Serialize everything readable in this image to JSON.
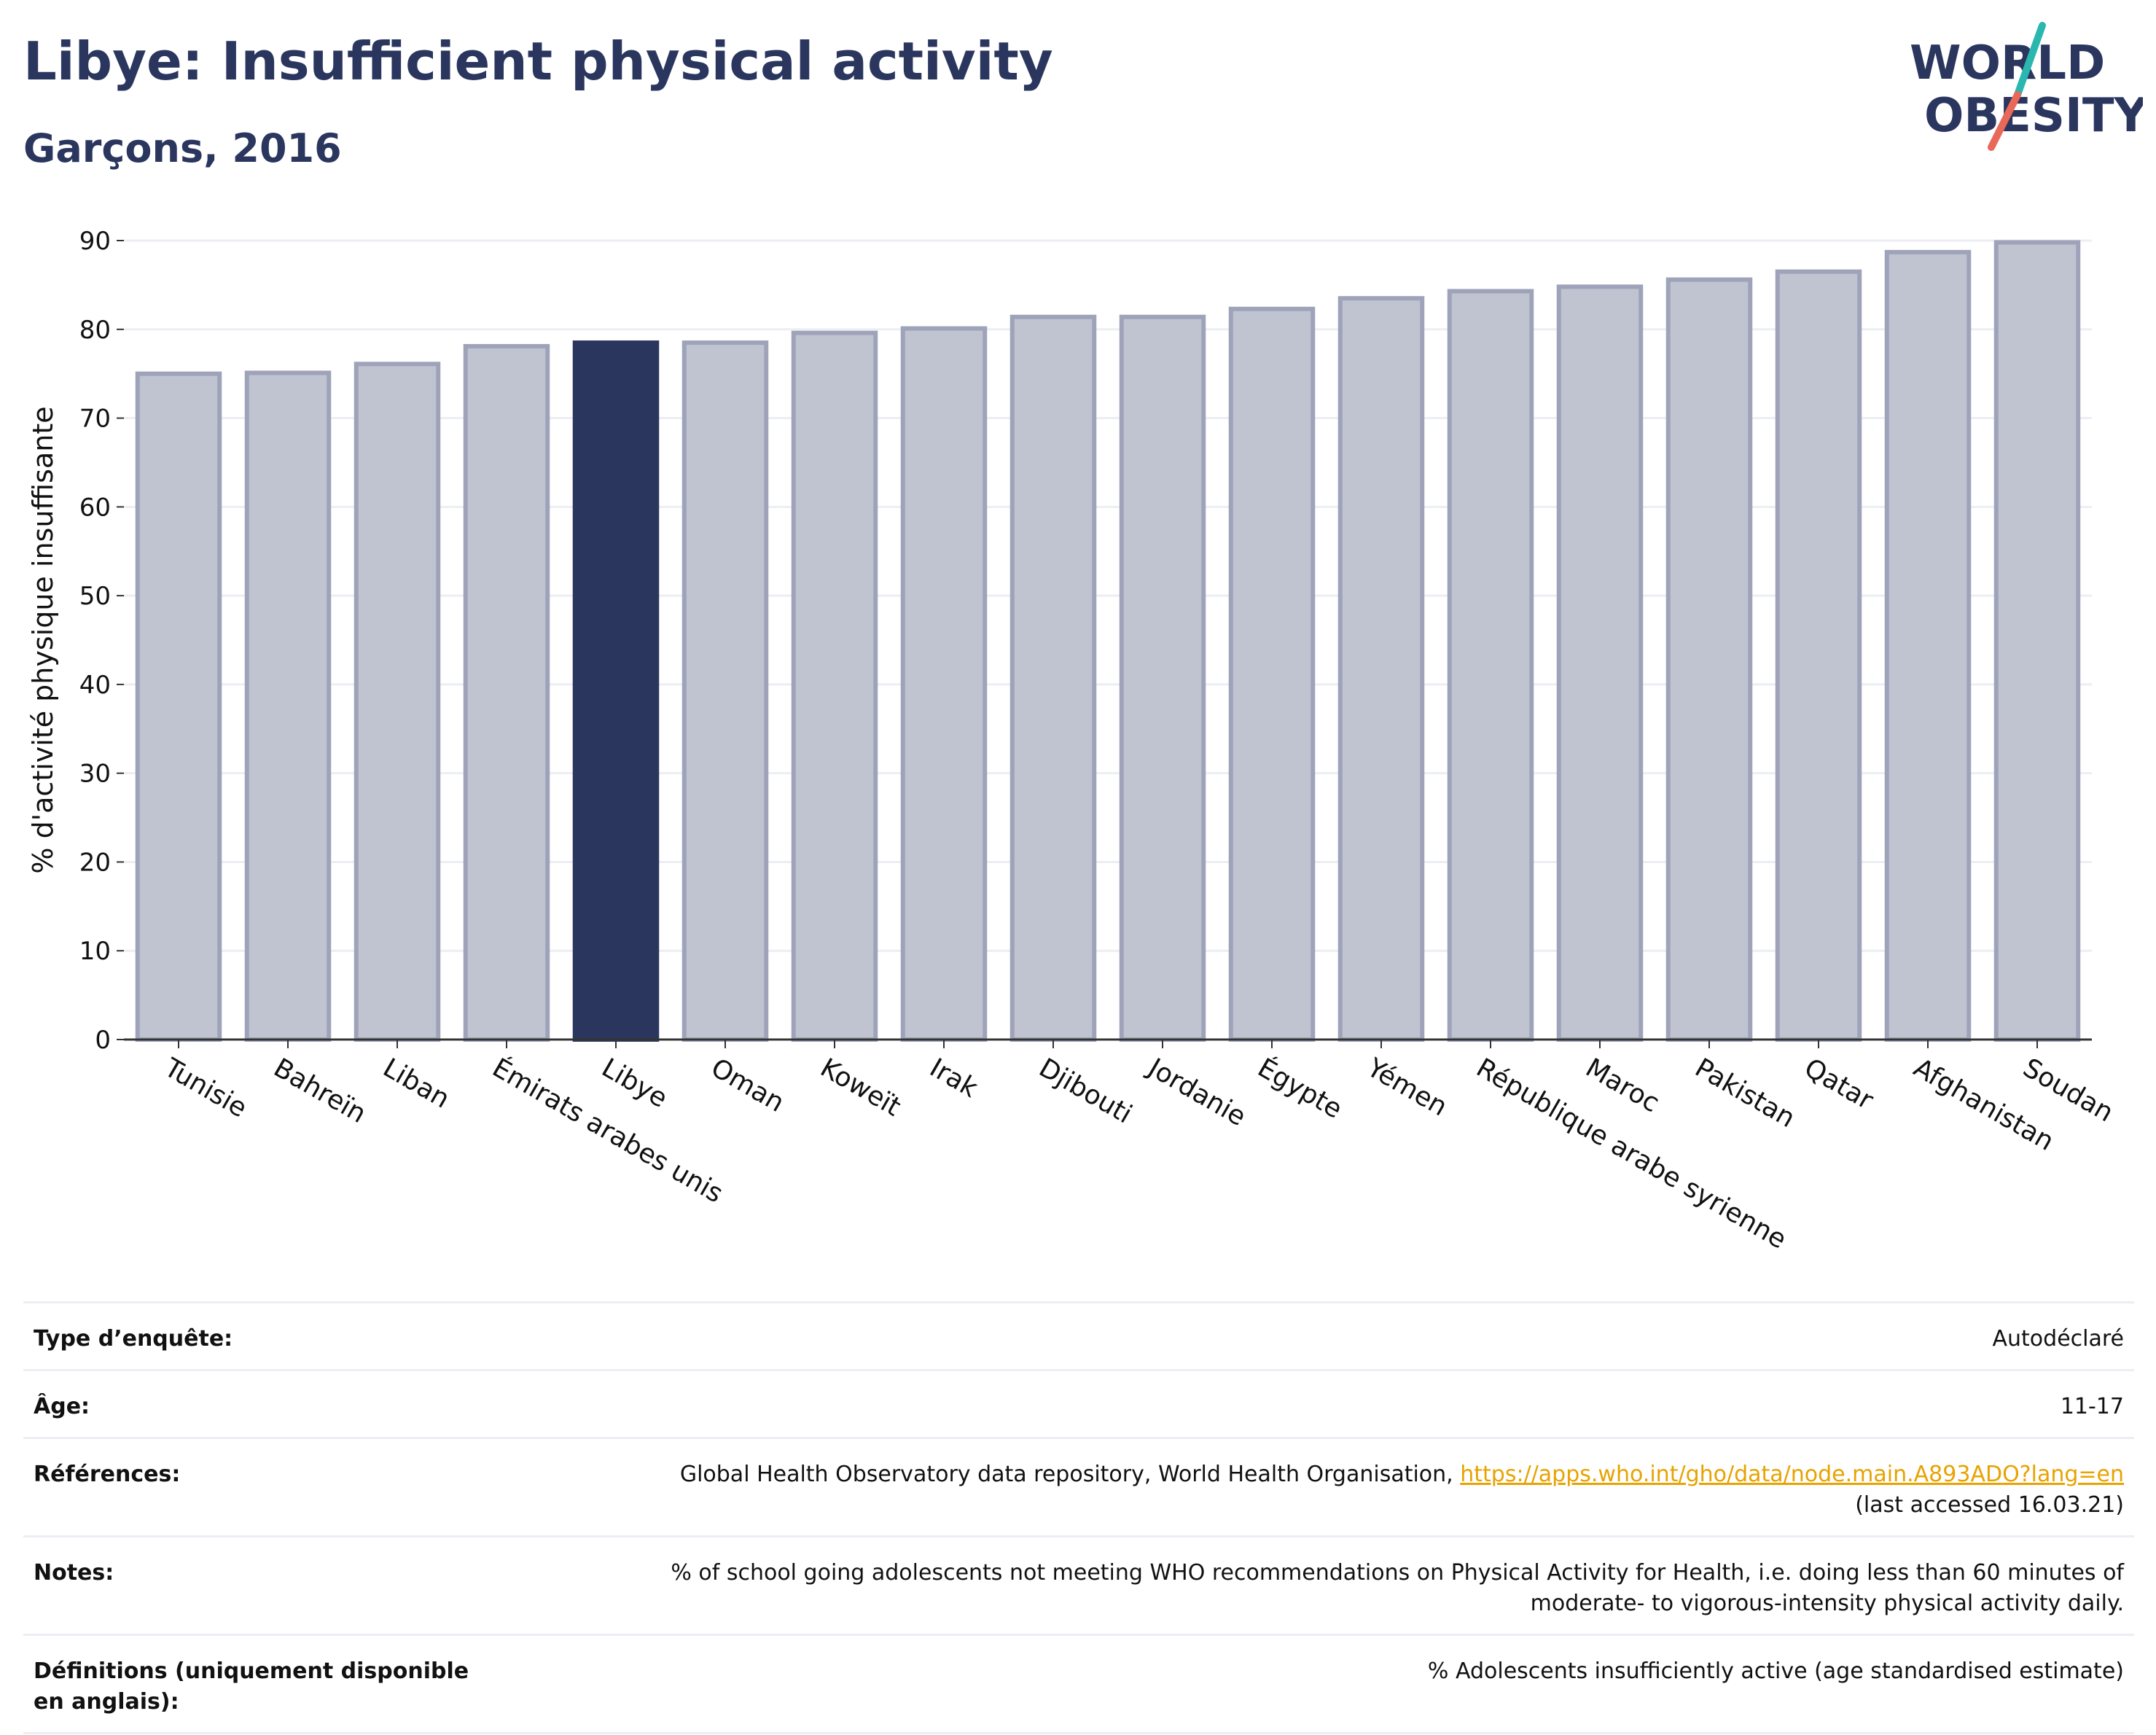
{
  "header": {
    "title": "Libye: Insufficient physical activity",
    "subtitle": "Garçons, 2016"
  },
  "logo": {
    "line1": "WORLD",
    "line2": "OBESITY",
    "accent_teal": "#2ab7b0",
    "accent_coral": "#e8685a"
  },
  "colors": {
    "highlight": "#2b365f",
    "bar": "#c0c3d0",
    "bar_border": "#9ea3ba",
    "axis": "#333333",
    "grid": "#eceef3"
  },
  "chart_data": {
    "type": "bar",
    "categories": [
      "Tunisie",
      "Bahreïn",
      "Liban",
      "Émirats arabes unis",
      "Libye",
      "Oman",
      "Koweït",
      "Irak",
      "Djibouti",
      "Jordanie",
      "Égypte",
      "Yémen",
      "République arabe syrienne",
      "Maroc",
      "Pakistan",
      "Qatar",
      "Afghanistan",
      "Soudan"
    ],
    "values": [
      75.0,
      75.1,
      76.1,
      78.1,
      78.5,
      78.5,
      79.6,
      80.1,
      81.4,
      81.4,
      82.3,
      83.5,
      84.3,
      84.8,
      85.6,
      86.5,
      88.7,
      89.8
    ],
    "highlight": "Libye",
    "title": "Libye: Insufficient physical activity",
    "subtitle": "Garçons, 2016",
    "xlabel": "",
    "ylabel": "% d'activité physique insuffisante",
    "yticks": [
      0,
      10,
      20,
      30,
      40,
      50,
      60,
      70,
      80,
      90
    ],
    "ylim": [
      0,
      90
    ],
    "grid": true
  },
  "info": {
    "survey_label": "Type d’enquête:",
    "survey_value": "Autodéclaré",
    "age_label": "Âge:",
    "age_value": "11-17",
    "refs_label": "Références:",
    "refs_text": "Global Health Observatory data repository, World Health Organisation,",
    "refs_link": "https://apps.who.int/gho/data/node.main.A893ADO?lang=en",
    "refs_accessed": "(last accessed 16.03.21)",
    "notes_label": "Notes:",
    "notes_line1": "% of school going adolescents not meeting WHO recommendations on Physical Activity for Health, i.e. doing less than 60 minutes of",
    "notes_line2": "moderate- to vigorous-intensity physical activity daily.",
    "defs_label": "Définitions (uniquement disponible en anglais):",
    "defs_value": "% Adolescents insufficiently active (age standardised estimate)"
  }
}
